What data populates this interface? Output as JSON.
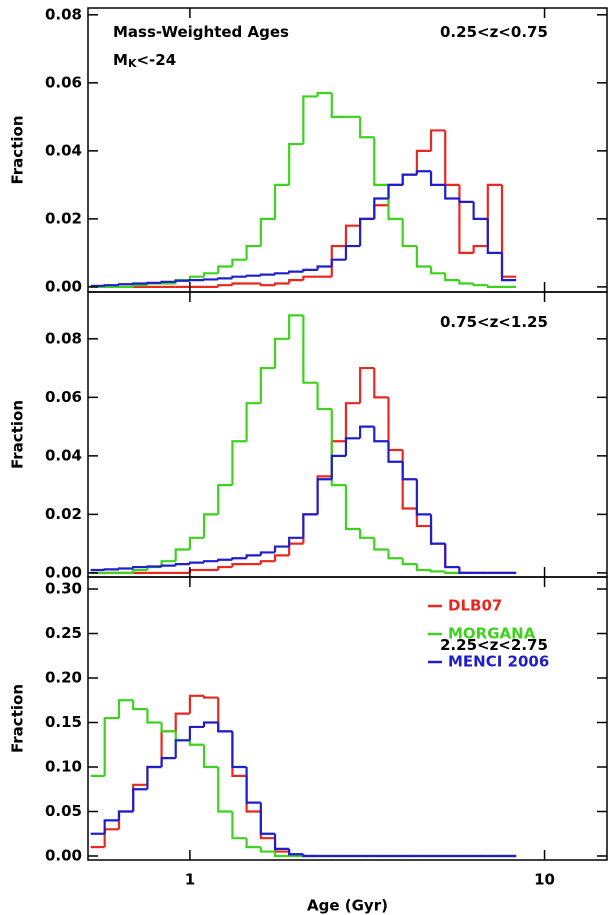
{
  "chart_data": [
    {
      "type": "histogram",
      "xscale": "log",
      "xlim": [
        0.516,
        15.0
      ],
      "ylim": [
        -0.0015,
        0.082
      ],
      "yticks": [
        {
          "value": 0,
          "label": "0.00"
        },
        0.02,
        0.04,
        0.06,
        0.08
      ],
      "ylabel": "Fraction",
      "annotations": [
        {
          "text": "Mass-Weighted Ages"
        },
        {
          "text": "M",
          "sub": "K",
          "rest": "<-24"
        },
        {
          "text": "0.25<z<0.75"
        }
      ],
      "bins": [
        0.525,
        0.575,
        0.631,
        0.692,
        0.759,
        0.832,
        0.912,
        1.0,
        1.096,
        1.202,
        1.318,
        1.445,
        1.585,
        1.738,
        1.905,
        2.089,
        2.291,
        2.512,
        2.754,
        3.02,
        3.311,
        3.631,
        3.981,
        4.365,
        4.786,
        5.248,
        5.754,
        6.31,
        6.918,
        7.586,
        8.318
      ],
      "series": [
        {
          "name": "DLB07",
          "color": "#e8281e",
          "values": [
            0,
            0,
            0,
            0,
            0,
            0,
            0,
            0,
            0,
            0.0005,
            0.001,
            0.001,
            0.0005,
            0.001,
            0.002,
            0.003,
            0.003,
            0.012,
            0.018,
            0.02,
            0.024,
            0.03,
            0.033,
            0.04,
            0.046,
            0.03,
            0.01,
            0.012,
            0.03,
            0.003
          ]
        },
        {
          "name": "MORGANA",
          "color": "#3cd21e",
          "values": [
            0,
            0,
            0,
            0.0005,
            0.001,
            0.001,
            0.002,
            0.003,
            0.004,
            0.006,
            0.008,
            0.012,
            0.02,
            0.03,
            0.042,
            0.056,
            0.057,
            0.05,
            0.05,
            0.044,
            0.03,
            0.02,
            0.012,
            0.006,
            0.004,
            0.002,
            0.001,
            0.0005,
            0,
            0
          ]
        },
        {
          "name": "MENCI 2006",
          "color": "#1e1ecc",
          "values": [
            0.0003,
            0.0005,
            0.0008,
            0.001,
            0.0012,
            0.0015,
            0.0018,
            0.002,
            0.0022,
            0.0025,
            0.003,
            0.0033,
            0.0036,
            0.004,
            0.0045,
            0.005,
            0.006,
            0.008,
            0.012,
            0.02,
            0.026,
            0.03,
            0.033,
            0.034,
            0.03,
            0.026,
            0.025,
            0.02,
            0.01,
            0.002
          ]
        }
      ]
    },
    {
      "type": "histogram",
      "xscale": "log",
      "xlim": [
        0.516,
        15.0
      ],
      "ylim": [
        -0.0014,
        0.096
      ],
      "yticks": [
        {
          "value": 0,
          "label": "0.00"
        },
        0.02,
        0.04,
        0.06,
        0.08
      ],
      "ylabel": "Fraction",
      "annotations": [
        {
          "text": "0.75<z<1.25"
        }
      ],
      "bins": [
        0.525,
        0.575,
        0.631,
        0.692,
        0.759,
        0.832,
        0.912,
        1.0,
        1.096,
        1.202,
        1.318,
        1.445,
        1.585,
        1.738,
        1.905,
        2.089,
        2.291,
        2.512,
        2.754,
        3.02,
        3.311,
        3.631,
        3.981,
        4.365,
        4.786,
        5.248,
        5.754,
        6.31,
        6.918,
        7.586,
        8.318
      ],
      "series": [
        {
          "name": "DLB07",
          "color": "#e8281e",
          "values": [
            0,
            0,
            0,
            0,
            0,
            0,
            0,
            0.001,
            0.001,
            0.002,
            0.003,
            0.003,
            0.004,
            0.006,
            0.01,
            0.02,
            0.033,
            0.045,
            0.058,
            0.07,
            0.06,
            0.042,
            0.022,
            0.016,
            0.01,
            0.002,
            0,
            0,
            0,
            0
          ]
        },
        {
          "name": "MORGANA",
          "color": "#3cd21e",
          "values": [
            0,
            0,
            0,
            0.001,
            0.002,
            0.004,
            0.008,
            0.012,
            0.02,
            0.03,
            0.045,
            0.058,
            0.07,
            0.08,
            0.088,
            0.065,
            0.056,
            0.03,
            0.015,
            0.012,
            0.008,
            0.005,
            0.003,
            0.001,
            0.0005,
            0,
            0,
            0,
            0,
            0
          ]
        },
        {
          "name": "MENCI 2006",
          "color": "#1e1ecc",
          "values": [
            0.001,
            0.0012,
            0.0015,
            0.002,
            0.0022,
            0.0025,
            0.003,
            0.0035,
            0.004,
            0.0045,
            0.005,
            0.006,
            0.007,
            0.009,
            0.012,
            0.02,
            0.032,
            0.04,
            0.046,
            0.05,
            0.045,
            0.038,
            0.032,
            0.02,
            0.01,
            0.002,
            0,
            0,
            0,
            0
          ]
        }
      ]
    },
    {
      "type": "histogram",
      "xscale": "log",
      "xlim": [
        0.516,
        15.0
      ],
      "ylim": [
        -0.0045,
        0.3135
      ],
      "xticks": [
        1,
        10
      ],
      "xlabel": "Age (Gyr)",
      "yticks": [
        {
          "value": 0,
          "label": "0.00"
        },
        0.05,
        {
          "value": 0.1,
          "label": "0.10"
        },
        0.15,
        {
          "value": 0.2,
          "label": "0.20"
        },
        0.25,
        {
          "value": 0.3,
          "label": "0.30"
        }
      ],
      "ylabel": "Fraction",
      "legend": "upper right",
      "annotations": [
        {
          "text": "2.25<z<2.75"
        }
      ],
      "bins": [
        0.525,
        0.575,
        0.631,
        0.692,
        0.759,
        0.832,
        0.912,
        1.0,
        1.096,
        1.202,
        1.318,
        1.445,
        1.585,
        1.738,
        1.905,
        2.089,
        2.291,
        2.512,
        2.754,
        3.02,
        3.311,
        3.631,
        3.981,
        4.365,
        4.786,
        5.248,
        5.754,
        6.31,
        6.918,
        7.586,
        8.318
      ],
      "series": [
        {
          "name": "DLB07",
          "color": "#e8281e",
          "values": [
            0.01,
            0.03,
            0.05,
            0.08,
            0.1,
            0.14,
            0.16,
            0.18,
            0.178,
            0.14,
            0.09,
            0.05,
            0.02,
            0.005,
            0.001,
            0,
            0,
            0,
            0,
            0,
            0,
            0,
            0,
            0,
            0,
            0,
            0,
            0,
            0,
            0
          ]
        },
        {
          "name": "MORGANA",
          "color": "#3cd21e",
          "values": [
            0.09,
            0.155,
            0.175,
            0.165,
            0.15,
            0.14,
            0.13,
            0.125,
            0.1,
            0.05,
            0.02,
            0.01,
            0.005,
            0,
            0,
            0,
            0,
            0,
            0,
            0,
            0,
            0,
            0,
            0,
            0,
            0,
            0,
            0,
            0,
            0
          ]
        },
        {
          "name": "MENCI 2006",
          "color": "#1e1ecc",
          "values": [
            0.025,
            0.04,
            0.05,
            0.075,
            0.1,
            0.11,
            0.13,
            0.145,
            0.15,
            0.14,
            0.1,
            0.06,
            0.025,
            0.008,
            0.002,
            0,
            0,
            0,
            0,
            0,
            0,
            0,
            0,
            0,
            0,
            0,
            0,
            0,
            0,
            0
          ]
        }
      ]
    }
  ]
}
